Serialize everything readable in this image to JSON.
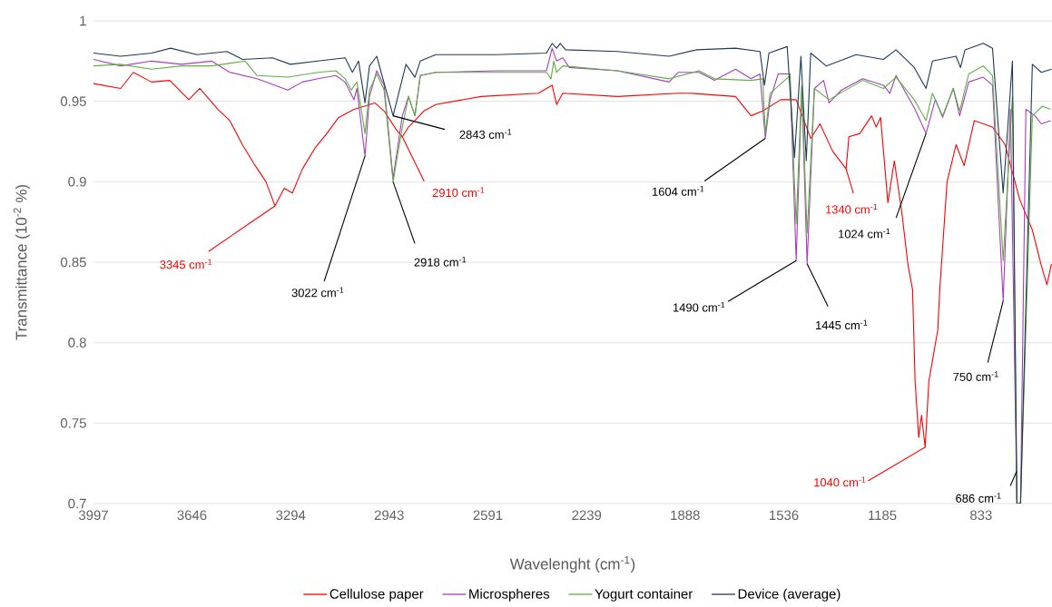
{
  "chart_data": {
    "type": "line",
    "xlabel": "Wavelenght (cm$^{-1}$)",
    "ylabel": "Transmittance (10$^{-2}$ %)",
    "xlim": [
      3997,
      580
    ],
    "ylim": [
      0.7,
      1
    ],
    "xticks": [
      3997,
      3646,
      3294,
      2943,
      2591,
      2239,
      1888,
      1536,
      1185,
      833
    ],
    "yticks": [
      0.7,
      0.75,
      0.8,
      0.85,
      0.9,
      0.95,
      1
    ],
    "grid": "y",
    "legend": "bottom",
    "series": [
      {
        "name": "Cellulose paper",
        "color": "#ff0000",
        "x": [
          3997,
          3900,
          3855,
          3790,
          3725,
          3657,
          3618,
          3553,
          3511,
          3466,
          3424,
          3382,
          3350,
          3317,
          3288,
          3252,
          3207,
          3165,
          3123,
          3068,
          2994,
          2961,
          2916,
          2896,
          2874,
          2819,
          2777,
          2615,
          2411,
          2362,
          2346,
          2324,
          2129,
          1912,
          1870,
          1708,
          1653,
          1611,
          1547,
          1492,
          1440,
          1407,
          1362,
          1314,
          1304,
          1265,
          1223,
          1207,
          1191,
          1165,
          1142,
          1116,
          1093,
          1077,
          1068,
          1055,
          1045,
          1032,
          1019,
          1006,
          987,
          980,
          954,
          922,
          893,
          857,
          792,
          747,
          695,
          650,
          618,
          598,
          582
        ],
        "values": [
          0.961,
          0.958,
          0.968,
          0.962,
          0.963,
          0.951,
          0.958,
          0.945,
          0.938,
          0.923,
          0.911,
          0.9,
          0.885,
          0.896,
          0.893,
          0.908,
          0.921,
          0.93,
          0.94,
          0.945,
          0.949,
          0.944,
          0.932,
          0.928,
          0.934,
          0.944,
          0.948,
          0.953,
          0.955,
          0.96,
          0.948,
          0.955,
          0.953,
          0.955,
          0.955,
          0.953,
          0.941,
          0.944,
          0.951,
          0.951,
          0.927,
          0.936,
          0.919,
          0.908,
          0.928,
          0.93,
          0.941,
          0.934,
          0.94,
          0.887,
          0.913,
          0.882,
          0.848,
          0.833,
          0.776,
          0.741,
          0.755,
          0.735,
          0.776,
          0.789,
          0.808,
          0.833,
          0.9,
          0.923,
          0.91,
          0.938,
          0.934,
          0.923,
          0.889,
          0.87,
          0.848,
          0.836,
          0.849
        ]
      },
      {
        "name": "Microspheres",
        "color": "#a83cbf",
        "x": [
          3997,
          3900,
          3790,
          3683,
          3576,
          3511,
          3414,
          3304,
          3252,
          3197,
          3133,
          3100,
          3068,
          3058,
          3029,
          3013,
          2987,
          2961,
          2929,
          2896,
          2874,
          2851,
          2832,
          2777,
          2560,
          2382,
          2362,
          2346,
          2324,
          2301,
          2129,
          1945,
          1912,
          1838,
          1783,
          1708,
          1653,
          1621,
          1602,
          1585,
          1556,
          1514,
          1492,
          1472,
          1453,
          1427,
          1394,
          1375,
          1330,
          1255,
          1181,
          1158,
          1136,
          1071,
          1029,
          996,
          970,
          932,
          909,
          877,
          825,
          792,
          754,
          728,
          705,
          692,
          673,
          640,
          618,
          585
        ],
        "values": [
          0.976,
          0.972,
          0.975,
          0.973,
          0.975,
          0.968,
          0.964,
          0.957,
          0.962,
          0.964,
          0.966,
          0.962,
          0.951,
          0.958,
          0.916,
          0.953,
          0.969,
          0.96,
          0.902,
          0.941,
          0.953,
          0.941,
          0.966,
          0.968,
          0.969,
          0.969,
          0.983,
          0.975,
          0.977,
          0.971,
          0.969,
          0.962,
          0.968,
          0.968,
          0.963,
          0.97,
          0.964,
          0.967,
          0.927,
          0.951,
          0.967,
          0.967,
          0.851,
          0.959,
          0.849,
          0.958,
          0.963,
          0.949,
          0.957,
          0.964,
          0.96,
          0.955,
          0.966,
          0.946,
          0.93,
          0.951,
          0.94,
          0.958,
          0.941,
          0.962,
          0.965,
          0.96,
          0.826,
          0.945,
          0.7,
          0.7,
          0.945,
          0.941,
          0.936,
          0.938
        ]
      },
      {
        "name": "Yogurt container",
        "color": "#5eb043",
        "x": [
          3997,
          3900,
          3790,
          3683,
          3576,
          3456,
          3414,
          3304,
          3197,
          3133,
          3100,
          3078,
          3058,
          3029,
          3013,
          2987,
          2961,
          2929,
          2896,
          2874,
          2851,
          2832,
          2777,
          2560,
          2382,
          2366,
          2356,
          2346,
          2324,
          2129,
          1945,
          1838,
          1783,
          1653,
          1611,
          1602,
          1585,
          1514,
          1492,
          1472,
          1453,
          1427,
          1375,
          1255,
          1181,
          1136,
          1071,
          1029,
          1006,
          970,
          932,
          909,
          877,
          825,
          792,
          754,
          721,
          705,
          692,
          650,
          614,
          585
        ],
        "values": [
          0.972,
          0.973,
          0.97,
          0.972,
          0.972,
          0.975,
          0.966,
          0.965,
          0.968,
          0.969,
          0.964,
          0.957,
          0.962,
          0.93,
          0.957,
          0.967,
          0.957,
          0.9,
          0.934,
          0.953,
          0.941,
          0.966,
          0.968,
          0.968,
          0.968,
          0.964,
          0.975,
          0.968,
          0.972,
          0.969,
          0.964,
          0.969,
          0.964,
          0.963,
          0.964,
          0.93,
          0.955,
          0.966,
          0.874,
          0.96,
          0.868,
          0.958,
          0.951,
          0.963,
          0.958,
          0.965,
          0.951,
          0.938,
          0.955,
          0.941,
          0.958,
          0.944,
          0.967,
          0.972,
          0.966,
          0.851,
          0.953,
          0.7,
          0.7,
          0.941,
          0.947,
          0.945
        ]
      },
      {
        "name": "Device (average)",
        "color": "#1f3a55",
        "x": [
          3997,
          3900,
          3790,
          3722,
          3628,
          3521,
          3466,
          3359,
          3295,
          3197,
          3100,
          3074,
          3052,
          3029,
          3013,
          2987,
          2929,
          2883,
          2851,
          2832,
          2777,
          2560,
          2382,
          2362,
          2346,
          2333,
          2314,
          2129,
          1945,
          1848,
          1708,
          1621,
          1605,
          1589,
          1524,
          1498,
          1475,
          1456,
          1440,
          1385,
          1278,
          1181,
          1136,
          1071,
          1029,
          1006,
          922,
          906,
          890,
          825,
          792,
          754,
          721,
          705,
          692,
          650,
          618,
          582
        ],
        "values": [
          0.98,
          0.978,
          0.98,
          0.983,
          0.979,
          0.981,
          0.976,
          0.977,
          0.973,
          0.975,
          0.977,
          0.968,
          0.975,
          0.949,
          0.972,
          0.978,
          0.941,
          0.973,
          0.965,
          0.975,
          0.979,
          0.979,
          0.98,
          0.986,
          0.983,
          0.986,
          0.982,
          0.981,
          0.978,
          0.982,
          0.983,
          0.981,
          0.96,
          0.98,
          0.984,
          0.915,
          0.978,
          0.913,
          0.98,
          0.972,
          0.979,
          0.976,
          0.982,
          0.971,
          0.958,
          0.975,
          0.978,
          0.971,
          0.982,
          0.986,
          0.983,
          0.893,
          0.975,
          0.7,
          0.7,
          0.973,
          0.968,
          0.97
        ]
      }
    ],
    "annotations": [
      {
        "text": "3345 cm$^{-1}$",
        "x": 3350,
        "y": 0.885
      },
      {
        "text": "3022 cm$^{-1}$",
        "x": 3029,
        "y": 0.916
      },
      {
        "text": "2918 cm$^{-1}$",
        "x": 2929,
        "y": 0.9
      },
      {
        "text": "2910 cm$^{-1}$",
        "x": 2896,
        "y": 0.928
      },
      {
        "text": "2843 cm$^{-1}$",
        "x": 2929,
        "y": 0.941
      },
      {
        "text": "1604 cm$^{-1}$",
        "x": 1602,
        "y": 0.927
      },
      {
        "text": "1490 cm$^{-1}$",
        "x": 1492,
        "y": 0.851
      },
      {
        "text": "1445 cm$^{-1}$",
        "x": 1453,
        "y": 0.849
      },
      {
        "text": "1340 cm$^{-1}$",
        "x": 1314,
        "y": 0.908
      },
      {
        "text": "1024 cm$^{-1}$",
        "x": 1029,
        "y": 0.93
      },
      {
        "text": "1040 cm$^{-1}$",
        "x": 1032,
        "y": 0.735
      },
      {
        "text": "750 cm$^{-1}$",
        "x": 754,
        "y": 0.826
      },
      {
        "text": "686 cm$^{-1}$",
        "x": 706,
        "y": 0.72
      }
    ]
  }
}
